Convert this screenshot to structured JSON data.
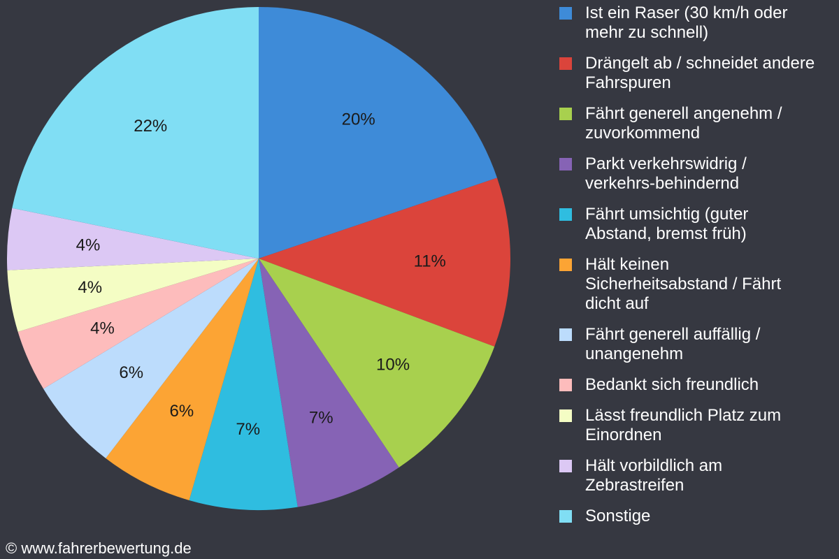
{
  "chart_data": {
    "type": "pie",
    "slices": [
      {
        "label": "Ist ein Raser (30 km/h oder mehr zu schnell)",
        "value": 20,
        "display": "20%",
        "color": "#3e8bd8"
      },
      {
        "label": "Drängelt ab / schneidet andere Fahrspuren",
        "value": 11,
        "display": "11%",
        "color": "#db443b"
      },
      {
        "label": "Fährt generell angenehm / zuvorkommend",
        "value": 10,
        "display": "10%",
        "color": "#a8d04e"
      },
      {
        "label": "Parkt verkehrswidrig / verkehrs-behindernd",
        "value": 7,
        "display": "7%",
        "color": "#8663b5"
      },
      {
        "label": "Fährt umsichtig (guter Abstand, bremst früh)",
        "value": 7,
        "display": "7%",
        "color": "#2fbde0"
      },
      {
        "label": "Hält keinen Sicherheitsabstand / Fährt dicht auf",
        "value": 6,
        "display": "6%",
        "color": "#fca434"
      },
      {
        "label": "Fährt generell auffällig / unangenehm",
        "value": 6,
        "display": "6%",
        "color": "#bcdcfc"
      },
      {
        "label": "Bedankt sich freundlich",
        "value": 4,
        "display": "4%",
        "color": "#fdbcbc"
      },
      {
        "label": "Lässt freundlich Platz zum Einordnen",
        "value": 4,
        "display": "4%",
        "color": "#f4fdc4"
      },
      {
        "label": "Hält vorbildlich am Zebrastreifen",
        "value": 4,
        "display": "4%",
        "color": "#dcc8f4"
      },
      {
        "label": "Sonstige",
        "value": 22,
        "display": "22%",
        "color": "#80def4"
      }
    ],
    "legend_position": "right"
  },
  "legend": {
    "lines": [
      [
        "Ist ein Raser (30 km/h oder",
        "mehr zu schnell)"
      ],
      [
        "Drängelt ab / schneidet andere",
        "Fahrspuren"
      ],
      [
        "Fährt generell angenehm /",
        "zuvorkommend"
      ],
      [
        "Parkt verkehrswidrig /",
        "verkehrs-behindernd"
      ],
      [
        "Fährt umsichtig (guter",
        "Abstand, bremst früh)"
      ],
      [
        "Hält keinen",
        "Sicherheitsabstand / Fährt",
        "dicht auf"
      ],
      [
        "Fährt generell auffällig /",
        "unangenehm"
      ],
      [
        "Bedankt sich freundlich"
      ],
      [
        "Lässt freundlich Platz zum",
        "Einordnen"
      ],
      [
        "Hält vorbildlich am",
        "Zebrastreifen"
      ],
      [
        "Sonstige"
      ]
    ]
  },
  "source": "© www.fahrerbewertung.de",
  "colors": {
    "background": "#363841",
    "text": "#ffffff",
    "label": "#1a1a1a"
  }
}
